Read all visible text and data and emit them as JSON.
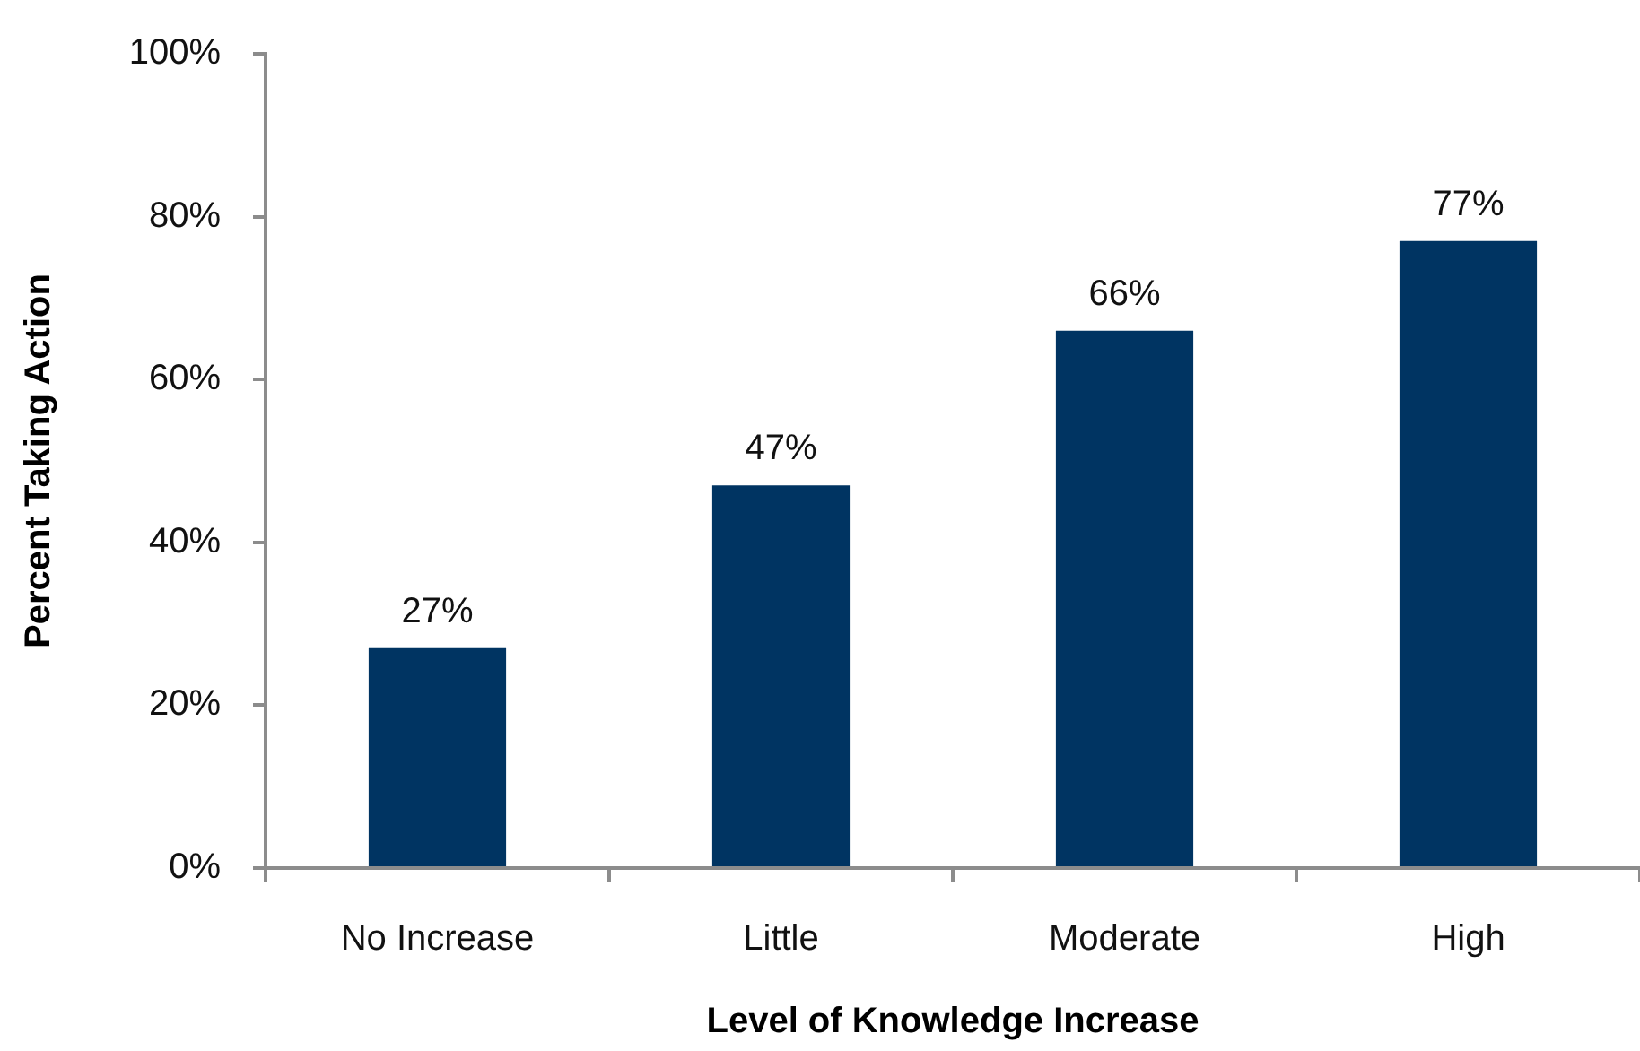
{
  "chart_data": {
    "type": "bar",
    "categories": [
      "No Increase",
      "Little",
      "Moderate",
      "High"
    ],
    "values": [
      27,
      47,
      66,
      77
    ],
    "color": "#003462",
    "value_labels": [
      "27%",
      "47%",
      "66%",
      "77%"
    ],
    "xlabel": "Level of Knowledge Increase",
    "ylabel": "Percent Taking Action",
    "ylim": [
      0,
      100
    ],
    "yticks": [
      {
        "value": 0,
        "label": "0%"
      },
      {
        "value": 20,
        "label": "20%"
      },
      {
        "value": 40,
        "label": "40%"
      },
      {
        "value": 60,
        "label": "60%"
      },
      {
        "value": 80,
        "label": "80%"
      },
      {
        "value": 100,
        "label": "100%"
      }
    ],
    "grid": false,
    "legend": false
  }
}
